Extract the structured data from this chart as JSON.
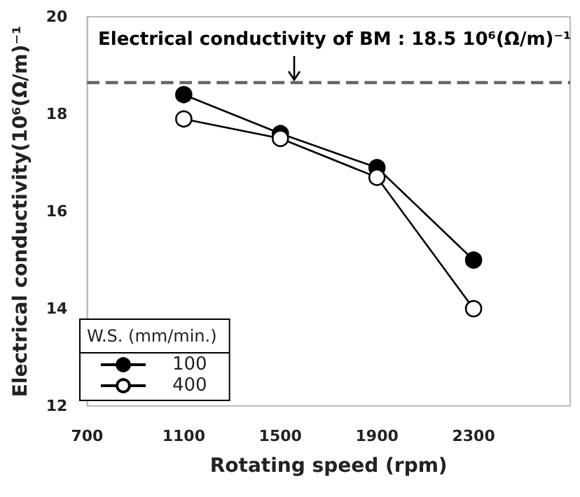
{
  "chart_data": {
    "type": "line",
    "xlabel": "Rotating speed (rpm)",
    "ylabel": "Electrical conductivity(10⁶(Ω/m)⁻¹",
    "legend_title": "W.S. (mm/min.)",
    "x": [
      1100,
      1500,
      1900,
      2300
    ],
    "series": [
      {
        "name": "100",
        "color": "#000000",
        "values": [
          18.4,
          17.6,
          16.9,
          15.0
        ]
      },
      {
        "name": "400",
        "color": "#ffffff",
        "values": [
          17.9,
          17.5,
          16.7,
          14.0
        ]
      }
    ],
    "xlim": [
      700,
      2700
    ],
    "xticks": [
      700,
      1100,
      1500,
      1900,
      2300
    ],
    "ylim": [
      12,
      20
    ],
    "yticks": [
      12,
      14,
      16,
      18,
      20
    ],
    "ref_lines": [
      {
        "axis": "y",
        "value": 18.65,
        "color": "#666666",
        "line_style": "dashed"
      }
    ],
    "annotations": [
      "Electrical conductivity of BM : 18.5 10⁶(Ω/m)⁻¹"
    ],
    "grid": false,
    "legend": "bottom left",
    "marker": "circle",
    "line_style": "solid"
  }
}
